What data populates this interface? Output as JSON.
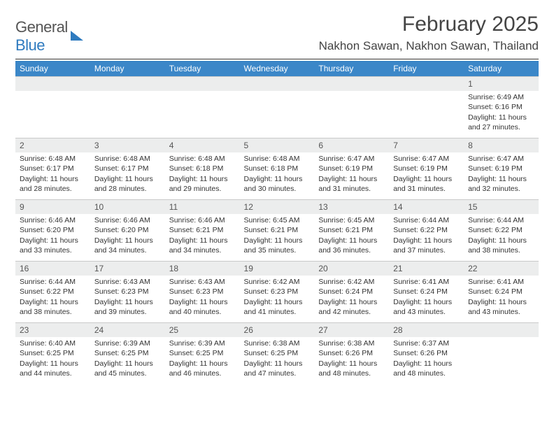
{
  "logo": {
    "word1": "General",
    "word2": "Blue"
  },
  "title": "February 2025",
  "location": "Nakhon Sawan, Nakhon Sawan, Thailand",
  "colors": {
    "header_bg": "#3b87c8",
    "daynum_bg": "#eceded",
    "accent": "#2f7bbf"
  },
  "weekdays": [
    "Sunday",
    "Monday",
    "Tuesday",
    "Wednesday",
    "Thursday",
    "Friday",
    "Saturday"
  ],
  "weeks": [
    [
      {
        "n": "",
        "lines": []
      },
      {
        "n": "",
        "lines": []
      },
      {
        "n": "",
        "lines": []
      },
      {
        "n": "",
        "lines": []
      },
      {
        "n": "",
        "lines": []
      },
      {
        "n": "",
        "lines": []
      },
      {
        "n": "1",
        "lines": [
          "Sunrise: 6:49 AM",
          "Sunset: 6:16 PM",
          "Daylight: 11 hours and 27 minutes."
        ]
      }
    ],
    [
      {
        "n": "2",
        "lines": [
          "Sunrise: 6:48 AM",
          "Sunset: 6:17 PM",
          "Daylight: 11 hours and 28 minutes."
        ]
      },
      {
        "n": "3",
        "lines": [
          "Sunrise: 6:48 AM",
          "Sunset: 6:17 PM",
          "Daylight: 11 hours and 28 minutes."
        ]
      },
      {
        "n": "4",
        "lines": [
          "Sunrise: 6:48 AM",
          "Sunset: 6:18 PM",
          "Daylight: 11 hours and 29 minutes."
        ]
      },
      {
        "n": "5",
        "lines": [
          "Sunrise: 6:48 AM",
          "Sunset: 6:18 PM",
          "Daylight: 11 hours and 30 minutes."
        ]
      },
      {
        "n": "6",
        "lines": [
          "Sunrise: 6:47 AM",
          "Sunset: 6:19 PM",
          "Daylight: 11 hours and 31 minutes."
        ]
      },
      {
        "n": "7",
        "lines": [
          "Sunrise: 6:47 AM",
          "Sunset: 6:19 PM",
          "Daylight: 11 hours and 31 minutes."
        ]
      },
      {
        "n": "8",
        "lines": [
          "Sunrise: 6:47 AM",
          "Sunset: 6:19 PM",
          "Daylight: 11 hours and 32 minutes."
        ]
      }
    ],
    [
      {
        "n": "9",
        "lines": [
          "Sunrise: 6:46 AM",
          "Sunset: 6:20 PM",
          "Daylight: 11 hours and 33 minutes."
        ]
      },
      {
        "n": "10",
        "lines": [
          "Sunrise: 6:46 AM",
          "Sunset: 6:20 PM",
          "Daylight: 11 hours and 34 minutes."
        ]
      },
      {
        "n": "11",
        "lines": [
          "Sunrise: 6:46 AM",
          "Sunset: 6:21 PM",
          "Daylight: 11 hours and 34 minutes."
        ]
      },
      {
        "n": "12",
        "lines": [
          "Sunrise: 6:45 AM",
          "Sunset: 6:21 PM",
          "Daylight: 11 hours and 35 minutes."
        ]
      },
      {
        "n": "13",
        "lines": [
          "Sunrise: 6:45 AM",
          "Sunset: 6:21 PM",
          "Daylight: 11 hours and 36 minutes."
        ]
      },
      {
        "n": "14",
        "lines": [
          "Sunrise: 6:44 AM",
          "Sunset: 6:22 PM",
          "Daylight: 11 hours and 37 minutes."
        ]
      },
      {
        "n": "15",
        "lines": [
          "Sunrise: 6:44 AM",
          "Sunset: 6:22 PM",
          "Daylight: 11 hours and 38 minutes."
        ]
      }
    ],
    [
      {
        "n": "16",
        "lines": [
          "Sunrise: 6:44 AM",
          "Sunset: 6:22 PM",
          "Daylight: 11 hours and 38 minutes."
        ]
      },
      {
        "n": "17",
        "lines": [
          "Sunrise: 6:43 AM",
          "Sunset: 6:23 PM",
          "Daylight: 11 hours and 39 minutes."
        ]
      },
      {
        "n": "18",
        "lines": [
          "Sunrise: 6:43 AM",
          "Sunset: 6:23 PM",
          "Daylight: 11 hours and 40 minutes."
        ]
      },
      {
        "n": "19",
        "lines": [
          "Sunrise: 6:42 AM",
          "Sunset: 6:23 PM",
          "Daylight: 11 hours and 41 minutes."
        ]
      },
      {
        "n": "20",
        "lines": [
          "Sunrise: 6:42 AM",
          "Sunset: 6:24 PM",
          "Daylight: 11 hours and 42 minutes."
        ]
      },
      {
        "n": "21",
        "lines": [
          "Sunrise: 6:41 AM",
          "Sunset: 6:24 PM",
          "Daylight: 11 hours and 43 minutes."
        ]
      },
      {
        "n": "22",
        "lines": [
          "Sunrise: 6:41 AM",
          "Sunset: 6:24 PM",
          "Daylight: 11 hours and 43 minutes."
        ]
      }
    ],
    [
      {
        "n": "23",
        "lines": [
          "Sunrise: 6:40 AM",
          "Sunset: 6:25 PM",
          "Daylight: 11 hours and 44 minutes."
        ]
      },
      {
        "n": "24",
        "lines": [
          "Sunrise: 6:39 AM",
          "Sunset: 6:25 PM",
          "Daylight: 11 hours and 45 minutes."
        ]
      },
      {
        "n": "25",
        "lines": [
          "Sunrise: 6:39 AM",
          "Sunset: 6:25 PM",
          "Daylight: 11 hours and 46 minutes."
        ]
      },
      {
        "n": "26",
        "lines": [
          "Sunrise: 6:38 AM",
          "Sunset: 6:25 PM",
          "Daylight: 11 hours and 47 minutes."
        ]
      },
      {
        "n": "27",
        "lines": [
          "Sunrise: 6:38 AM",
          "Sunset: 6:26 PM",
          "Daylight: 11 hours and 48 minutes."
        ]
      },
      {
        "n": "28",
        "lines": [
          "Sunrise: 6:37 AM",
          "Sunset: 6:26 PM",
          "Daylight: 11 hours and 48 minutes."
        ]
      },
      {
        "n": "",
        "lines": []
      }
    ]
  ]
}
